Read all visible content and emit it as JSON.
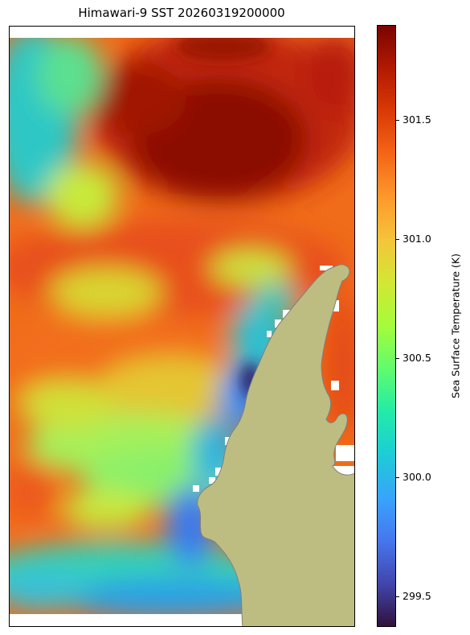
{
  "title": "Himawari-9 SST 20260319200000",
  "colorbar": {
    "label": "Sea Surface Temperature (K)",
    "colormap": "turbo",
    "range": [
      299.37,
      301.9
    ],
    "ticks": [
      "299.5",
      "300.0",
      "300.5",
      "301.0",
      "301.5"
    ],
    "tick_values": [
      299.5,
      300.0,
      300.5,
      301.0,
      301.5
    ]
  },
  "map": {
    "land_color": "#bdbd82",
    "land_edge_color": "#808080",
    "missing_color": "#ffffff"
  }
}
